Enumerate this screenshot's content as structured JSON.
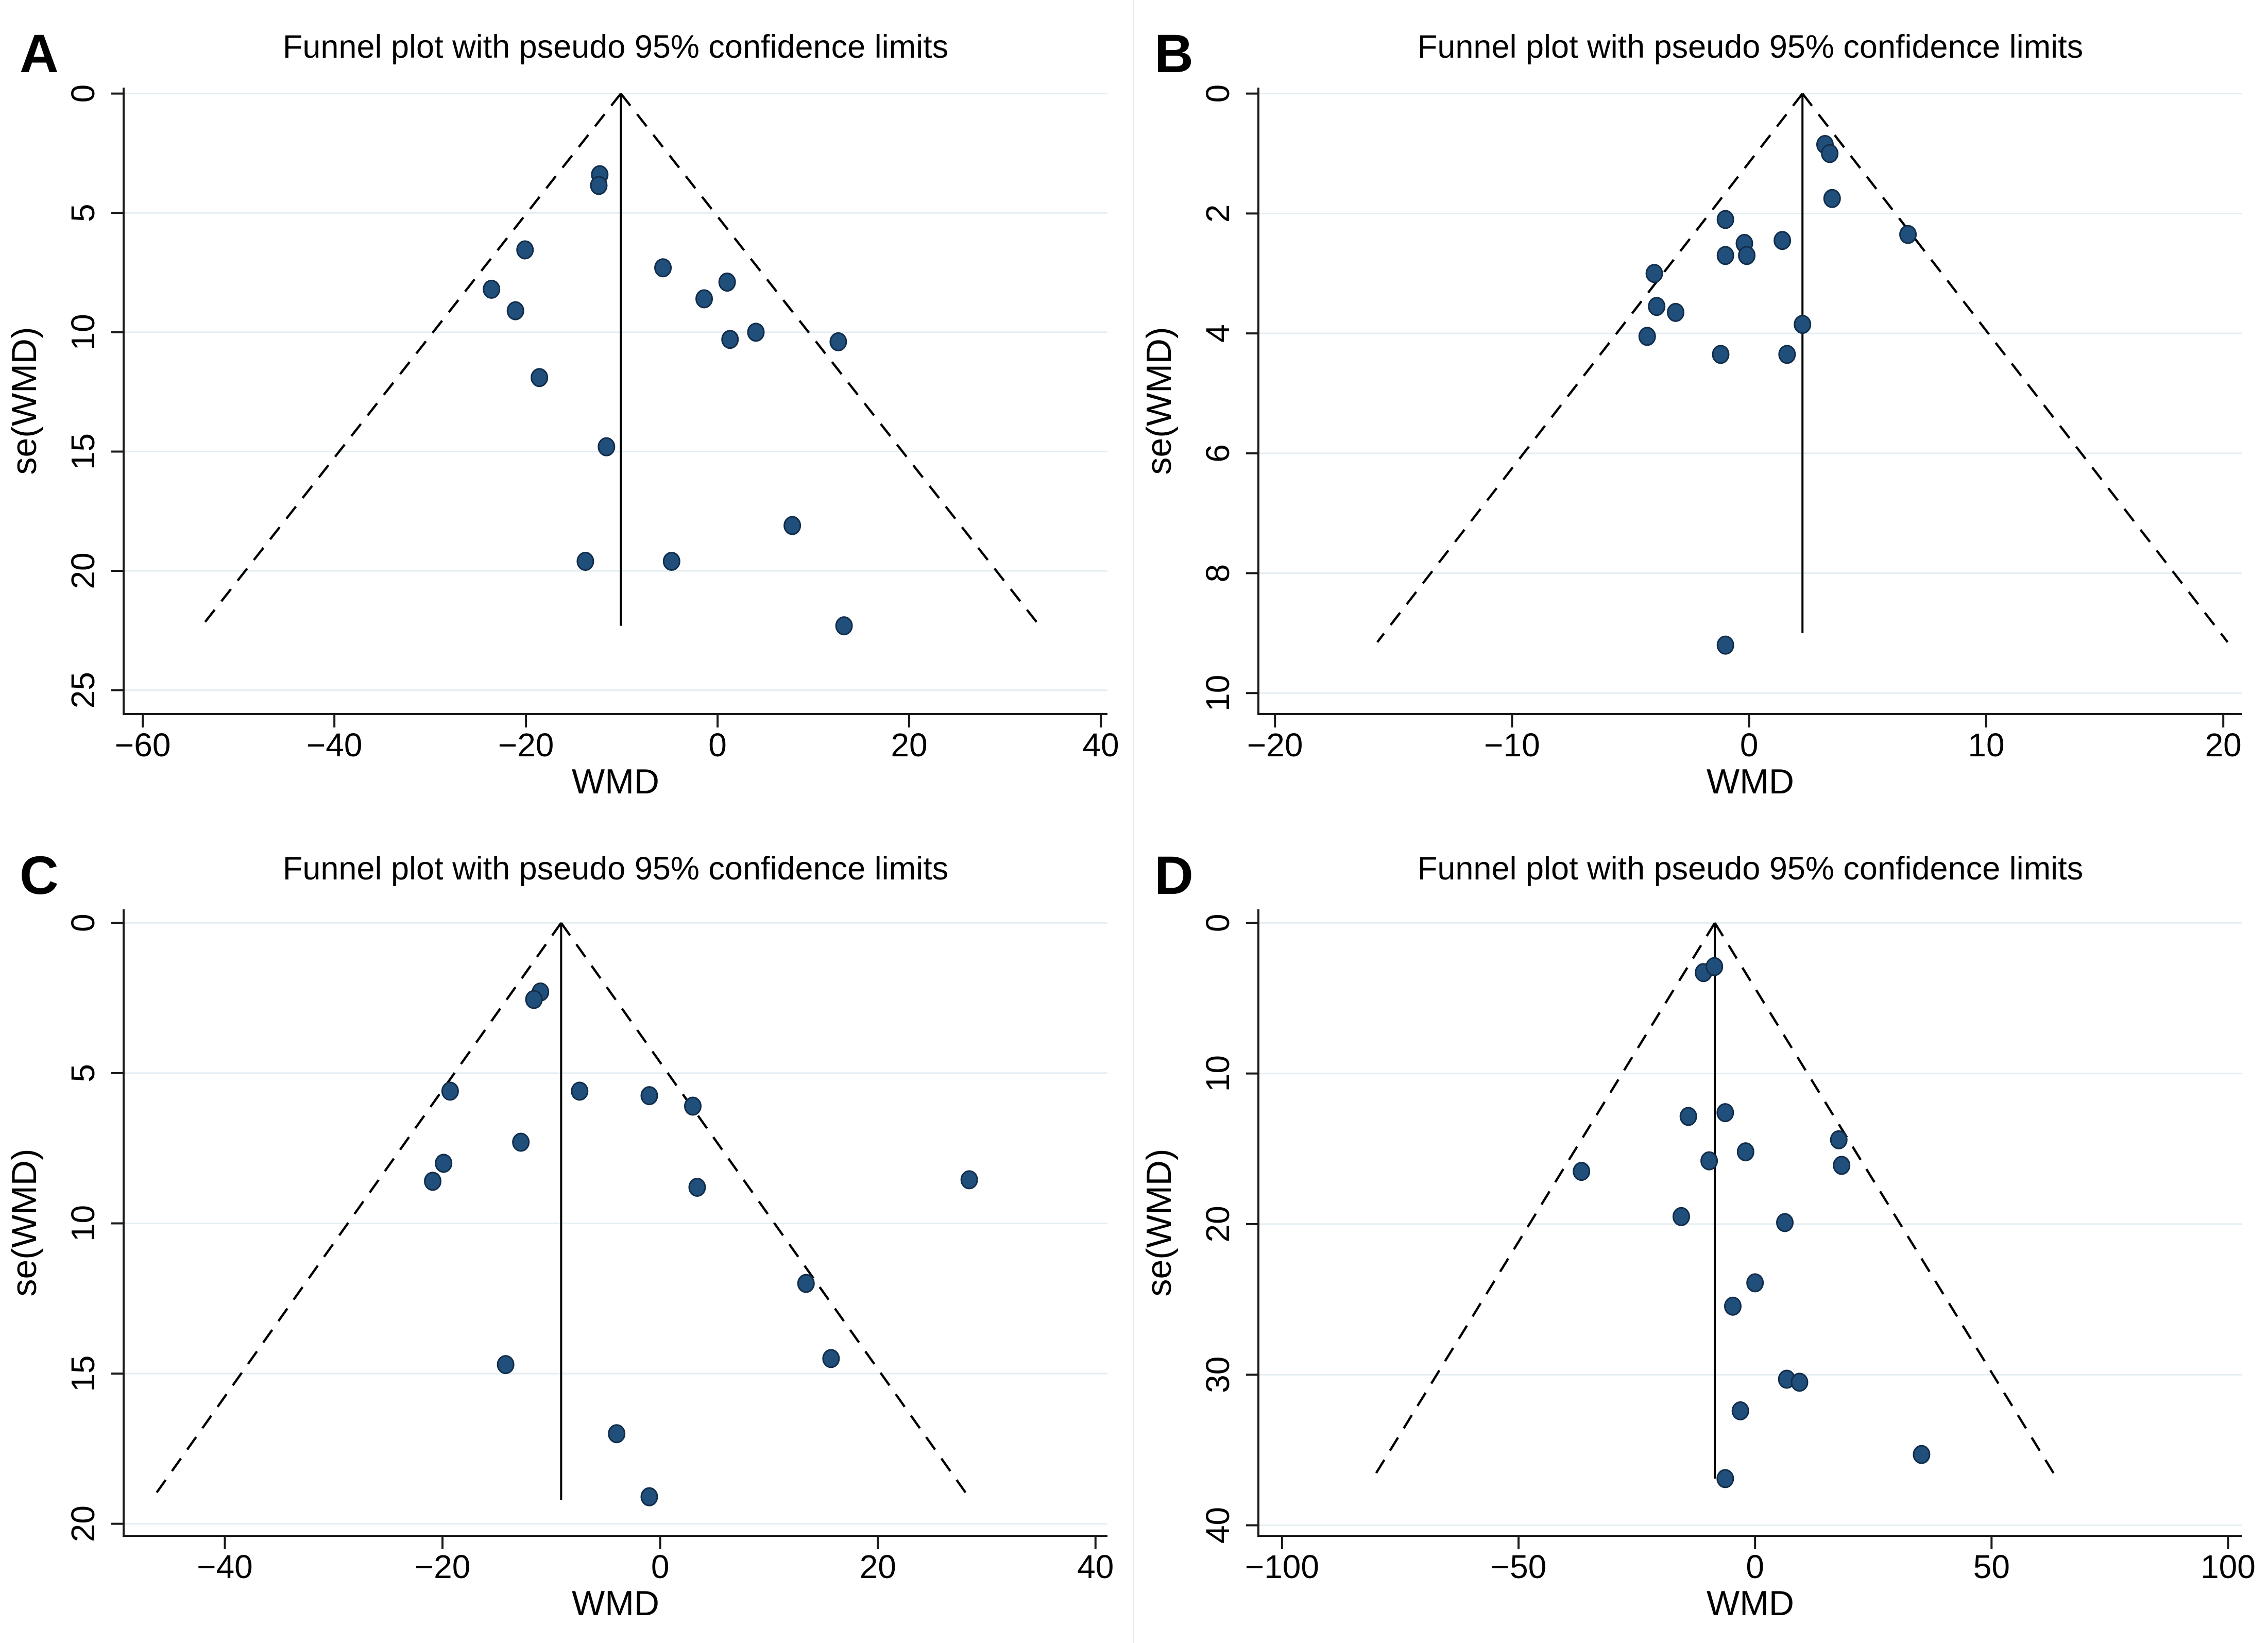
{
  "figure": {
    "background": "#ffffff",
    "seam_color": "#e6e6e6",
    "colors": {
      "dot_fill": "#214F7B",
      "dot_stroke": "#122D4B",
      "grid": "#E3EEF2",
      "axis": "#1a1a1a",
      "text": "#000000",
      "funnel_line": "#000000",
      "pooled_line": "#000000"
    }
  },
  "chart_data": [
    {
      "panel": "A",
      "type": "scatter",
      "title": "Funnel plot with pseudo 95% confidence limits",
      "xlabel": "WMD",
      "ylabel": "se(WMD)",
      "y_axis_inverted": true,
      "grid": "horizontal-only",
      "legend": "none",
      "xlim": [
        -62.0,
        40.7
      ],
      "ylim": [
        -0.25,
        26.0
      ],
      "xticks": [
        {
          "value": -60,
          "label": "−60"
        },
        {
          "value": -40,
          "label": "−40"
        },
        {
          "value": -20,
          "label": "−20"
        },
        {
          "value": 0,
          "label": "0"
        },
        {
          "value": 20,
          "label": "20"
        },
        {
          "value": 40,
          "label": "40"
        }
      ],
      "yticks": [
        {
          "value": 0,
          "label": "0"
        },
        {
          "value": 5,
          "label": "5"
        },
        {
          "value": 10,
          "label": "10"
        },
        {
          "value": 15,
          "label": "15"
        },
        {
          "value": 20,
          "label": "20"
        },
        {
          "value": 25,
          "label": "25"
        }
      ],
      "pooled_effect_x": -10.1,
      "pooled_line_se_end": 22.3,
      "funnel": {
        "apex_x": -10.1,
        "apex_se": 0,
        "se_end": 22.3,
        "slope": 1.96
      },
      "points": [
        [
          -12.3,
          3.4
        ],
        [
          -12.4,
          3.85
        ],
        [
          -20.1,
          6.55
        ],
        [
          -23.6,
          8.2
        ],
        [
          -21.1,
          9.1
        ],
        [
          -5.7,
          7.3
        ],
        [
          1.0,
          7.9
        ],
        [
          -1.4,
          8.6
        ],
        [
          1.3,
          10.3
        ],
        [
          4.0,
          10.0
        ],
        [
          12.6,
          10.4
        ],
        [
          -18.6,
          11.9
        ],
        [
          -11.6,
          14.8
        ],
        [
          7.8,
          18.1
        ],
        [
          -13.8,
          19.6
        ],
        [
          -4.8,
          19.6
        ],
        [
          13.2,
          22.3
        ]
      ]
    },
    {
      "panel": "B",
      "type": "scatter",
      "title": "Funnel plot with pseudo 95% confidence limits",
      "xlabel": "WMD",
      "ylabel": "se(WMD)",
      "y_axis_inverted": true,
      "grid": "horizontal-only",
      "legend": "none",
      "xlim": [
        -20.7,
        20.8
      ],
      "ylim": [
        -0.1,
        10.35
      ],
      "xticks": [
        {
          "value": -20,
          "label": "−20"
        },
        {
          "value": -10,
          "label": "−10"
        },
        {
          "value": 0,
          "label": "0"
        },
        {
          "value": 10,
          "label": "10"
        },
        {
          "value": 20,
          "label": "20"
        }
      ],
      "yticks": [
        {
          "value": 0,
          "label": "0"
        },
        {
          "value": 2,
          "label": "2"
        },
        {
          "value": 4,
          "label": "4"
        },
        {
          "value": 6,
          "label": "6"
        },
        {
          "value": 8,
          "label": "8"
        },
        {
          "value": 10,
          "label": "10"
        }
      ],
      "pooled_effect_x": 2.25,
      "pooled_line_se_end": 9.0,
      "funnel": {
        "apex_x": 2.25,
        "apex_se": 0,
        "se_end": 9.15,
        "slope": 1.96
      },
      "points": [
        [
          3.2,
          0.85
        ],
        [
          3.4,
          1.0
        ],
        [
          3.5,
          1.75
        ],
        [
          -1.0,
          2.1
        ],
        [
          6.7,
          2.35
        ],
        [
          1.4,
          2.45
        ],
        [
          -0.2,
          2.5
        ],
        [
          -1.0,
          2.7
        ],
        [
          -0.1,
          2.7
        ],
        [
          -4.0,
          3.0
        ],
        [
          -3.9,
          3.55
        ],
        [
          -3.1,
          3.65
        ],
        [
          2.25,
          3.85
        ],
        [
          -4.3,
          4.05
        ],
        [
          -1.2,
          4.35
        ],
        [
          1.6,
          4.35
        ],
        [
          -1.0,
          9.2
        ]
      ]
    },
    {
      "panel": "C",
      "type": "scatter",
      "title": "Funnel plot with pseudo 95% confidence limits",
      "xlabel": "WMD",
      "ylabel": "se(WMD)",
      "y_axis_inverted": true,
      "grid": "horizontal-only",
      "legend": "none",
      "xlim": [
        -49.3,
        41.1
      ],
      "ylim": [
        -0.45,
        20.4
      ],
      "xticks": [
        {
          "value": -40,
          "label": "−40"
        },
        {
          "value": -20,
          "label": "−20"
        },
        {
          "value": 0,
          "label": "0"
        },
        {
          "value": 20,
          "label": "20"
        },
        {
          "value": 40,
          "label": "40"
        }
      ],
      "yticks": [
        {
          "value": 0,
          "label": "0"
        },
        {
          "value": 5,
          "label": "5"
        },
        {
          "value": 10,
          "label": "10"
        },
        {
          "value": 15,
          "label": "15"
        },
        {
          "value": 20,
          "label": "20"
        }
      ],
      "pooled_effect_x": -9.1,
      "pooled_line_se_end": 19.2,
      "funnel": {
        "apex_x": -9.1,
        "apex_se": 0,
        "se_end": 19.2,
        "slope": 1.96
      },
      "points": [
        [
          -11.0,
          2.3
        ],
        [
          -11.6,
          2.55
        ],
        [
          -19.3,
          5.6
        ],
        [
          -7.4,
          5.6
        ],
        [
          -1.0,
          5.75
        ],
        [
          3.0,
          6.1
        ],
        [
          -12.8,
          7.3
        ],
        [
          -19.9,
          8.0
        ],
        [
          -20.9,
          8.6
        ],
        [
          3.4,
          8.8
        ],
        [
          28.4,
          8.55
        ],
        [
          13.4,
          12.0
        ],
        [
          15.7,
          14.5
        ],
        [
          -14.2,
          14.7
        ],
        [
          -4.0,
          17.0
        ],
        [
          -1.0,
          19.1
        ]
      ]
    },
    {
      "panel": "D",
      "type": "scatter",
      "title": "Funnel plot with pseudo 95% confidence limits",
      "xlabel": "WMD",
      "ylabel": "se(WMD)",
      "y_axis_inverted": true,
      "grid": "horizontal-only",
      "legend": "none",
      "xlim": [
        -105,
        103
      ],
      "ylim": [
        -0.9,
        40.7
      ],
      "xticks": [
        {
          "value": -100,
          "label": "−100"
        },
        {
          "value": -50,
          "label": "−50"
        },
        {
          "value": 0,
          "label": "0"
        },
        {
          "value": 50,
          "label": "50"
        },
        {
          "value": 100,
          "label": "100"
        }
      ],
      "yticks": [
        {
          "value": 0,
          "label": "0"
        },
        {
          "value": 10,
          "label": "10"
        },
        {
          "value": 20,
          "label": "20"
        },
        {
          "value": 30,
          "label": "30"
        },
        {
          "value": 40,
          "label": "40"
        }
      ],
      "pooled_effect_x": -8.5,
      "pooled_line_se_end": 36.9,
      "funnel": {
        "apex_x": -8.5,
        "apex_se": 0,
        "se_end": 36.8,
        "slope": 1.96
      },
      "points": [
        [
          -10.9,
          3.3
        ],
        [
          -8.6,
          2.9
        ],
        [
          -14.1,
          12.85
        ],
        [
          -6.3,
          12.6
        ],
        [
          17.7,
          14.4
        ],
        [
          -2.0,
          15.2
        ],
        [
          -9.7,
          15.8
        ],
        [
          18.3,
          16.1
        ],
        [
          -36.7,
          16.5
        ],
        [
          -15.6,
          19.5
        ],
        [
          6.3,
          19.9
        ],
        [
          0.0,
          23.9
        ],
        [
          -4.7,
          25.45
        ],
        [
          6.7,
          30.3
        ],
        [
          9.4,
          30.5
        ],
        [
          -3.1,
          32.4
        ],
        [
          35.2,
          35.3
        ],
        [
          -6.3,
          36.9
        ]
      ]
    }
  ]
}
